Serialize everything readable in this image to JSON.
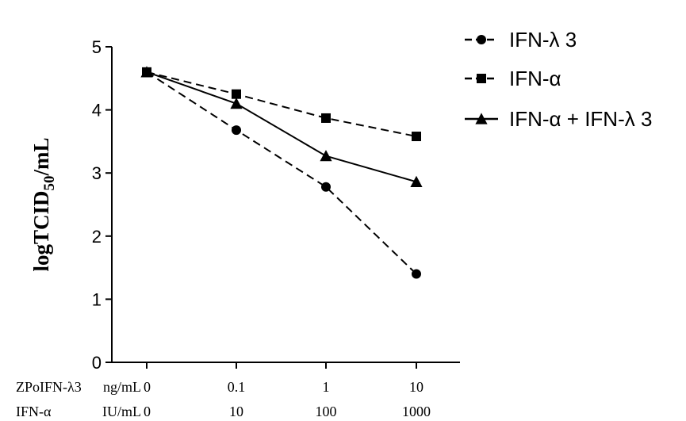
{
  "chart_data": {
    "type": "line",
    "ylabel": "logTCID",
    "ylabel_sub": "50",
    "ylabel_suffix": "/mL",
    "ylim": [
      0,
      5
    ],
    "yticks": [
      0,
      1,
      2,
      3,
      4,
      5
    ],
    "x_categories": [
      {
        "zpo": "0",
        "ifn": "0"
      },
      {
        "zpo": "0.1",
        "ifn": "10"
      },
      {
        "zpo": "1",
        "ifn": "100"
      },
      {
        "zpo": "10",
        "ifn": "1000"
      }
    ],
    "x_rows": [
      {
        "label": "ZPoIFN-λ3",
        "unit": "ng/mL"
      },
      {
        "label": "IFN-α",
        "unit": "IU/mL"
      }
    ],
    "series": [
      {
        "name": "IFN-λ 3",
        "marker": "circle",
        "dash": true,
        "values": [
          4.6,
          3.68,
          2.78,
          1.4
        ]
      },
      {
        "name": "IFN-α",
        "marker": "square",
        "dash": true,
        "values": [
          4.6,
          4.25,
          3.87,
          3.58
        ]
      },
      {
        "name": "IFN-α + IFN-λ 3",
        "marker": "triangle",
        "dash": false,
        "values": [
          4.6,
          4.1,
          3.27,
          2.86
        ]
      }
    ],
    "legend_position": "top-right",
    "grid": false,
    "color": "#000000"
  }
}
